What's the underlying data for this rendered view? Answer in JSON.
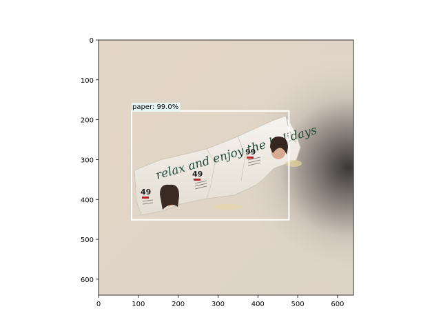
{
  "figure": {
    "x_ticks": [
      "0",
      "100",
      "200",
      "300",
      "400",
      "500",
      "600"
    ],
    "y_ticks": [
      "0",
      "100",
      "200",
      "300",
      "400",
      "500",
      "600"
    ],
    "x_range": [
      0,
      640
    ],
    "y_range": [
      640,
      0
    ]
  },
  "photo": {
    "subject": "crumpled newspaper advertisement on a beige wall",
    "headline_text": "relax and enjoy the holidays",
    "price_tags": [
      "49",
      "49",
      "99"
    ]
  },
  "detection": {
    "label": "paper: 99.0%",
    "box_color": "#ffffff",
    "label_bg": "#e8f5f5",
    "box": {
      "x_min": 83,
      "y_min": 178,
      "x_max": 478,
      "y_max": 451
    }
  }
}
